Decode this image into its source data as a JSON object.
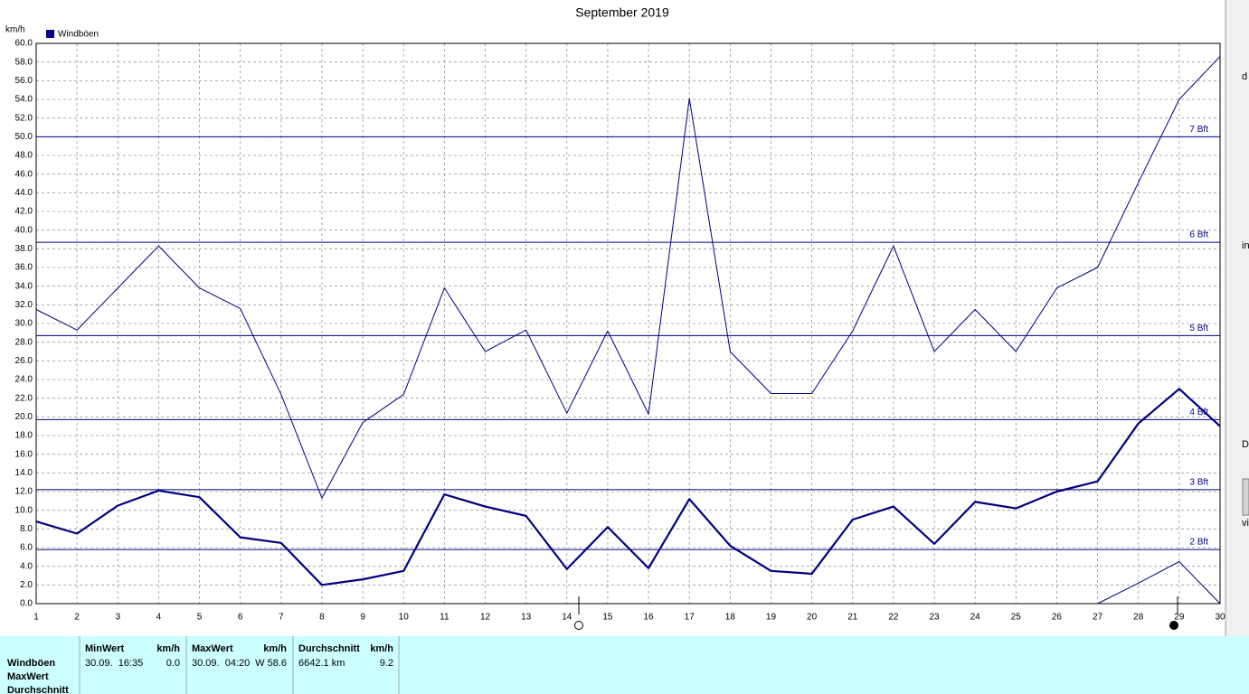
{
  "chart_data": {
    "type": "line",
    "title": "September 2019",
    "y_label": "km/h",
    "x": [
      1,
      2,
      3,
      4,
      5,
      6,
      7,
      8,
      9,
      10,
      11,
      12,
      13,
      14,
      15,
      16,
      17,
      18,
      19,
      20,
      21,
      22,
      23,
      24,
      25,
      26,
      27,
      28,
      29,
      30
    ],
    "xlim": [
      1,
      30
    ],
    "xticks": [
      1,
      2,
      3,
      4,
      5,
      6,
      7,
      8,
      9,
      10,
      11,
      12,
      13,
      14,
      15,
      16,
      17,
      18,
      19,
      20,
      21,
      22,
      23,
      24,
      25,
      26,
      27,
      28,
      29,
      30
    ],
    "ylim": [
      0,
      60
    ],
    "yticks": [
      {
        "value": 0,
        "label": "0.0"
      },
      {
        "value": 2,
        "label": "2.0"
      },
      {
        "value": 4,
        "label": "4.0"
      },
      {
        "value": 6,
        "label": "6.0"
      },
      {
        "value": 8,
        "label": "8.0"
      },
      {
        "value": 10,
        "label": "10.0"
      },
      {
        "value": 12,
        "label": "12.0"
      },
      {
        "value": 14,
        "label": "14.0"
      },
      {
        "value": 16,
        "label": "16.0"
      },
      {
        "value": 18,
        "label": "18.0"
      },
      {
        "value": 20,
        "label": "20.0"
      },
      {
        "value": 22,
        "label": "22.0"
      },
      {
        "value": 24,
        "label": "24.0"
      },
      {
        "value": 26,
        "label": "26.0"
      },
      {
        "value": 28,
        "label": "28.0"
      },
      {
        "value": 30,
        "label": "30.0"
      },
      {
        "value": 32,
        "label": "32.0"
      },
      {
        "value": 34,
        "label": "34.0"
      },
      {
        "value": 36,
        "label": "36.0"
      },
      {
        "value": 38,
        "label": "38.0"
      },
      {
        "value": 40,
        "label": "40.0"
      },
      {
        "value": 42,
        "label": "42.0"
      },
      {
        "value": 44,
        "label": "44.0"
      },
      {
        "value": 46,
        "label": "46.0"
      },
      {
        "value": 48,
        "label": "48.0"
      },
      {
        "value": 50,
        "label": "50.0"
      },
      {
        "value": 52,
        "label": "52.0"
      },
      {
        "value": 54,
        "label": "54.0"
      },
      {
        "value": 56,
        "label": "56.0"
      },
      {
        "value": 58,
        "label": "58.0"
      },
      {
        "value": 60,
        "label": "60.0"
      }
    ],
    "grid": true,
    "legend": "upper left",
    "series": [
      {
        "name": "Windböen",
        "color": "#000080",
        "line_width": 2.2,
        "values": [
          8.8,
          7.5,
          10.5,
          12.1,
          11.4,
          7.1,
          6.5,
          2.0,
          2.6,
          3.5,
          11.7,
          10.4,
          9.4,
          3.7,
          8.2,
          3.8,
          11.2,
          6.2,
          3.5,
          3.2,
          9.0,
          10.4,
          6.4,
          10.9,
          10.2,
          12.0,
          13.1,
          19.3,
          23.0,
          19.0
        ]
      },
      {
        "color": "#000080",
        "line_width": 1,
        "values": [
          31.5,
          29.3,
          33.8,
          38.3,
          33.8,
          31.6,
          22.4,
          11.3,
          19.4,
          22.4,
          33.8,
          27.0,
          29.3,
          20.4,
          29.2,
          20.3,
          54.1,
          27.0,
          22.5,
          22.5,
          29.2,
          38.3,
          27.0,
          31.5,
          27.0,
          33.8,
          36.0,
          45.1,
          54.0,
          58.6
        ]
      },
      {
        "color": "#000080",
        "line_width": 1,
        "values": [
          null,
          null,
          null,
          null,
          null,
          null,
          null,
          null,
          null,
          null,
          null,
          null,
          null,
          null,
          null,
          null,
          null,
          null,
          null,
          null,
          null,
          null,
          null,
          null,
          null,
          null,
          0,
          2.2,
          4.5,
          0
        ]
      }
    ],
    "reference_lines": [
      {
        "value": 5.8,
        "label": "2 Bft"
      },
      {
        "value": 12.2,
        "label": "3 Bft"
      },
      {
        "value": 19.7,
        "label": "4 Bft"
      },
      {
        "value": 28.7,
        "label": "5 Bft"
      },
      {
        "value": 38.7,
        "label": "6 Bft"
      },
      {
        "value": 50,
        "label": "7 Bft"
      }
    ],
    "reference_color": "#000080"
  },
  "stats": {
    "row_labels": [
      "Windböen",
      "MaxWert",
      "Durchschnitt"
    ],
    "columns": [
      {
        "header": "MinWert",
        "unit": "km/h",
        "cells": [
          "30.09.  16:35",
          "0.0"
        ]
      },
      {
        "header": "MaxWert",
        "unit": "km/h",
        "cells": [
          "30.09.  04:20",
          "W 58.6"
        ]
      },
      {
        "header": "Durchschnitt",
        "unit": "km/h",
        "cells": [
          "6642.1 km",
          "9.2"
        ]
      }
    ]
  },
  "side_labels": [
    "d",
    "in",
    "D",
    "vi"
  ]
}
